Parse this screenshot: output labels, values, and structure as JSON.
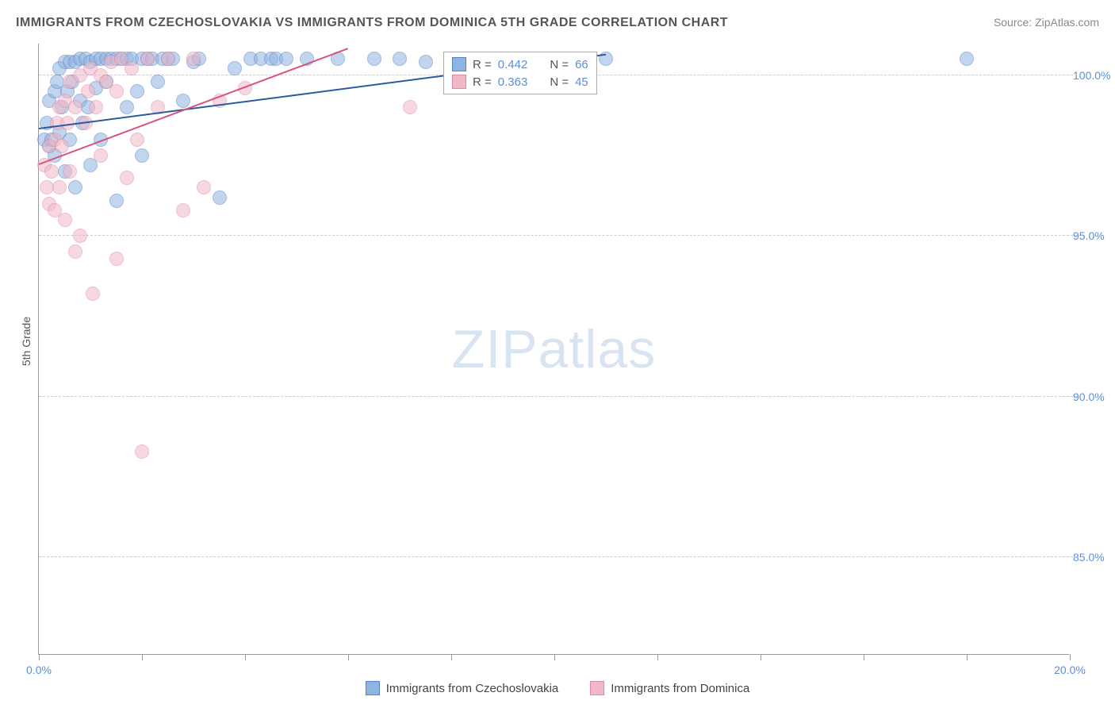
{
  "title": "IMMIGRANTS FROM CZECHOSLOVAKIA VS IMMIGRANTS FROM DOMINICA 5TH GRADE CORRELATION CHART",
  "source": "Source: ZipAtlas.com",
  "y_axis_label": "5th Grade",
  "watermark_bold": "ZIP",
  "watermark_light": "atlas",
  "chart": {
    "type": "scatter",
    "xlim": [
      0,
      20
    ],
    "ylim": [
      82,
      101
    ],
    "x_ticks": [
      0,
      2,
      4,
      6,
      8,
      10,
      12,
      14,
      16,
      18,
      20
    ],
    "x_tick_labels": {
      "0": "0.0%",
      "20": "20.0%"
    },
    "y_gridlines": [
      85,
      90,
      95,
      100
    ],
    "y_tick_labels": {
      "85": "85.0%",
      "90": "90.0%",
      "95": "95.0%",
      "100": "100.0%"
    },
    "background_color": "#ffffff",
    "grid_color": "#cccccc",
    "axis_color": "#999999",
    "label_color": "#5b8fd6",
    "series": [
      {
        "name": "Immigrants from Czechoslovakia",
        "fill": "#8fb4e3",
        "stroke": "#5782c4",
        "line_color": "#2c5aa0",
        "R": "0.442",
        "N": "66",
        "trend": {
          "x1": 0,
          "y1": 98.3,
          "x2": 11,
          "y2": 100.6
        },
        "points": [
          [
            0.1,
            98.0
          ],
          [
            0.15,
            98.5
          ],
          [
            0.2,
            97.8
          ],
          [
            0.2,
            99.2
          ],
          [
            0.25,
            98.0
          ],
          [
            0.3,
            99.5
          ],
          [
            0.3,
            97.5
          ],
          [
            0.35,
            99.8
          ],
          [
            0.4,
            98.2
          ],
          [
            0.4,
            100.2
          ],
          [
            0.45,
            99.0
          ],
          [
            0.5,
            100.4
          ],
          [
            0.5,
            97.0
          ],
          [
            0.55,
            99.5
          ],
          [
            0.6,
            100.4
          ],
          [
            0.6,
            98.0
          ],
          [
            0.65,
            99.8
          ],
          [
            0.7,
            100.4
          ],
          [
            0.7,
            96.5
          ],
          [
            0.8,
            99.2
          ],
          [
            0.8,
            100.5
          ],
          [
            0.85,
            98.5
          ],
          [
            0.9,
            100.5
          ],
          [
            0.95,
            99.0
          ],
          [
            1.0,
            100.4
          ],
          [
            1.0,
            97.2
          ],
          [
            1.1,
            99.6
          ],
          [
            1.1,
            100.5
          ],
          [
            1.2,
            100.5
          ],
          [
            1.2,
            98.0
          ],
          [
            1.3,
            99.8
          ],
          [
            1.3,
            100.5
          ],
          [
            1.4,
            100.5
          ],
          [
            1.5,
            100.5
          ],
          [
            1.5,
            96.1
          ],
          [
            1.6,
            100.5
          ],
          [
            1.7,
            99.0
          ],
          [
            1.7,
            100.5
          ],
          [
            1.8,
            100.5
          ],
          [
            1.9,
            99.5
          ],
          [
            2.0,
            100.5
          ],
          [
            2.0,
            97.5
          ],
          [
            2.1,
            100.5
          ],
          [
            2.2,
            100.5
          ],
          [
            2.3,
            99.8
          ],
          [
            2.4,
            100.5
          ],
          [
            2.5,
            100.5
          ],
          [
            2.6,
            100.5
          ],
          [
            2.8,
            99.2
          ],
          [
            3.0,
            100.4
          ],
          [
            3.1,
            100.5
          ],
          [
            3.5,
            96.2
          ],
          [
            3.8,
            100.2
          ],
          [
            4.1,
            100.5
          ],
          [
            4.3,
            100.5
          ],
          [
            4.5,
            100.5
          ],
          [
            4.6,
            100.5
          ],
          [
            4.8,
            100.5
          ],
          [
            5.2,
            100.5
          ],
          [
            5.8,
            100.5
          ],
          [
            6.5,
            100.5
          ],
          [
            7.0,
            100.5
          ],
          [
            7.5,
            100.4
          ],
          [
            8.2,
            100.5
          ],
          [
            11.0,
            100.5
          ],
          [
            18.0,
            100.5
          ]
        ]
      },
      {
        "name": "Immigrants from Dominica",
        "fill": "#f2b8c8",
        "stroke": "#e08aa5",
        "line_color": "#d6547e",
        "R": "0.363",
        "N": "45",
        "trend": {
          "x1": 0,
          "y1": 97.2,
          "x2": 6,
          "y2": 100.8
        },
        "points": [
          [
            0.1,
            97.2
          ],
          [
            0.15,
            96.5
          ],
          [
            0.2,
            97.8
          ],
          [
            0.2,
            96.0
          ],
          [
            0.25,
            97.0
          ],
          [
            0.3,
            98.0
          ],
          [
            0.3,
            95.8
          ],
          [
            0.35,
            98.5
          ],
          [
            0.4,
            99.0
          ],
          [
            0.4,
            96.5
          ],
          [
            0.45,
            97.8
          ],
          [
            0.5,
            99.2
          ],
          [
            0.5,
            95.5
          ],
          [
            0.55,
            98.5
          ],
          [
            0.6,
            99.8
          ],
          [
            0.6,
            97.0
          ],
          [
            0.7,
            94.5
          ],
          [
            0.7,
            99.0
          ],
          [
            0.8,
            100.0
          ],
          [
            0.8,
            95.0
          ],
          [
            0.9,
            98.5
          ],
          [
            0.95,
            99.5
          ],
          [
            1.0,
            100.2
          ],
          [
            1.05,
            93.2
          ],
          [
            1.1,
            99.0
          ],
          [
            1.2,
            100.0
          ],
          [
            1.2,
            97.5
          ],
          [
            1.3,
            99.8
          ],
          [
            1.4,
            100.4
          ],
          [
            1.5,
            94.3
          ],
          [
            1.5,
            99.5
          ],
          [
            1.6,
            100.5
          ],
          [
            1.7,
            96.8
          ],
          [
            1.8,
            100.2
          ],
          [
            1.9,
            98.0
          ],
          [
            2.0,
            88.3
          ],
          [
            2.1,
            100.5
          ],
          [
            2.3,
            99.0
          ],
          [
            2.5,
            100.5
          ],
          [
            2.8,
            95.8
          ],
          [
            3.0,
            100.5
          ],
          [
            3.2,
            96.5
          ],
          [
            3.5,
            99.2
          ],
          [
            4.0,
            99.6
          ],
          [
            7.2,
            99.0
          ]
        ]
      }
    ]
  },
  "legend": {
    "r_label": "R =",
    "n_label": "N ="
  }
}
